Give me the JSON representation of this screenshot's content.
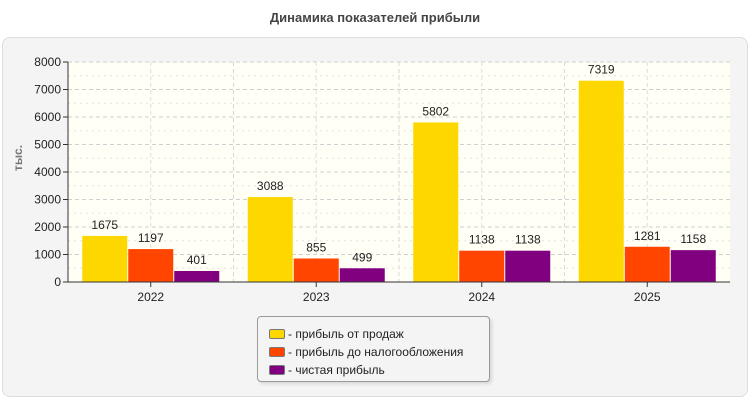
{
  "chart_data": {
    "type": "bar",
    "title": "Динамика показателей прибыли",
    "ylabel": "тыс.",
    "xlabel": "",
    "categories": [
      "2022",
      "2023",
      "2024",
      "2025"
    ],
    "ylim": [
      0,
      8000
    ],
    "yticks": [
      0,
      1000,
      2000,
      3000,
      4000,
      5000,
      6000,
      7000,
      8000
    ],
    "grid": true,
    "legend_position": "bottom",
    "series": [
      {
        "name": "- прибыль от продаж",
        "values": [
          1675,
          3088,
          5802,
          7319
        ],
        "color": "#FFD700"
      },
      {
        "name": "- прибыль до налогообложения",
        "values": [
          1197,
          855,
          1138,
          1281
        ],
        "color": "#FF4500"
      },
      {
        "name": "- чистая прибыль",
        "values": [
          401,
          499,
          1138,
          1158
        ],
        "color": "#800080"
      }
    ]
  }
}
